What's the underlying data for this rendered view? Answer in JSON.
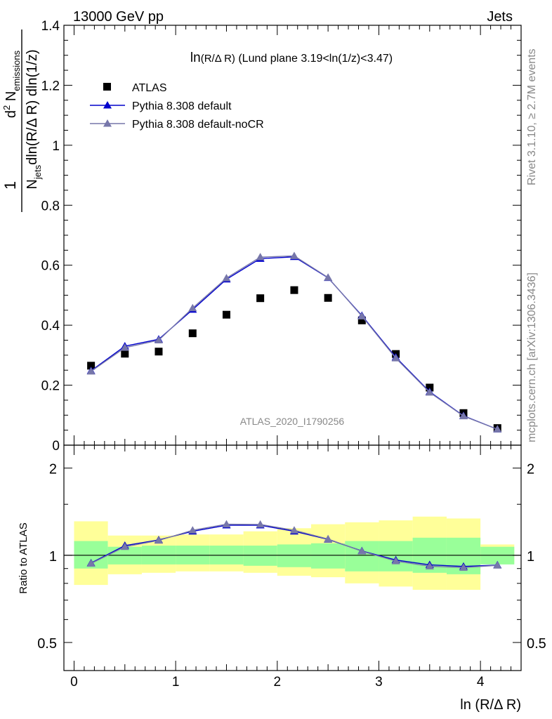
{
  "header": {
    "left": "13000 GeV pp",
    "right": "Jets"
  },
  "side": {
    "rivet": "Rivet 3.1.10, ≥ 2.7M events",
    "mcplots": "mcplots.cern.ch [arXiv:1306.3436]"
  },
  "colors": {
    "atlas": "#000000",
    "default": "#0000cc",
    "noCR": "#7777aa",
    "band_inner": "#99ff99",
    "band_outer": "#ffff99"
  },
  "chart_data": [
    {
      "type": "scatter",
      "title": "ln(R/Δ R) (Lund plane 3.19<ln(1/z)<3.47)",
      "ylabel": "1/N_jets d²N_emissions / dln(R/Δ R) dln(1/z)",
      "watermark": "ATLAS_2020_I1790256",
      "xlim": [
        -0.1,
        4.4
      ],
      "ylim": [
        0,
        1.4
      ],
      "yticks": [
        "0",
        "0.2",
        "0.4",
        "0.6",
        "0.8",
        "1",
        "1.2",
        "1.4"
      ],
      "legend_position": "top-left",
      "x": [
        0.167,
        0.5,
        0.833,
        1.167,
        1.5,
        1.833,
        2.167,
        2.5,
        2.833,
        3.167,
        3.5,
        3.833,
        4.167
      ],
      "series": [
        {
          "name": "ATLAS",
          "marker": "square",
          "values": [
            0.265,
            0.305,
            0.312,
            0.373,
            0.435,
            0.49,
            0.517,
            0.491,
            0.416,
            0.304,
            0.192,
            0.107,
            0.057
          ]
        },
        {
          "name": "Pythia 8.308 default",
          "marker": "triangle",
          "values": [
            0.248,
            0.33,
            0.353,
            0.452,
            0.553,
            0.622,
            0.628,
            0.558,
            0.432,
            0.293,
            0.178,
            0.098,
            0.053
          ]
        },
        {
          "name": "Pythia 8.308 default-noCR",
          "marker": "triangle",
          "values": [
            0.246,
            0.325,
            0.35,
            0.457,
            0.557,
            0.627,
            0.631,
            0.559,
            0.43,
            0.29,
            0.176,
            0.097,
            0.053
          ]
        }
      ]
    },
    {
      "type": "line",
      "ylabel": "Ratio to ATLAS",
      "xlabel": "ln (R/Δ R)",
      "xlim": [
        -0.1,
        4.4
      ],
      "ylim": [
        0.4,
        2.4
      ],
      "log_y": true,
      "xticks": [
        "0",
        "1",
        "2",
        "3",
        "4"
      ],
      "yticks": [
        "0.5",
        "1",
        "2"
      ],
      "x": [
        0.167,
        0.5,
        0.833,
        1.167,
        1.5,
        1.833,
        2.167,
        2.5,
        2.833,
        3.167,
        3.5,
        3.833,
        4.167
      ],
      "bins": [
        0,
        0.333,
        0.667,
        1.0,
        1.333,
        1.667,
        2.0,
        2.333,
        2.667,
        3.0,
        3.333,
        3.667,
        4.0,
        4.333
      ],
      "band_inner": [
        [
          0.9,
          1.12
        ],
        [
          0.93,
          1.07
        ],
        [
          0.93,
          1.08
        ],
        [
          0.93,
          1.08
        ],
        [
          0.93,
          1.08
        ],
        [
          0.92,
          1.08
        ],
        [
          0.91,
          1.09
        ],
        [
          0.9,
          1.1
        ],
        [
          0.88,
          1.12
        ],
        [
          0.88,
          1.12
        ],
        [
          0.87,
          1.15
        ],
        [
          0.86,
          1.15
        ],
        [
          0.93,
          1.07
        ]
      ],
      "band_outer": [
        [
          0.79,
          1.31
        ],
        [
          0.86,
          1.17
        ],
        [
          0.87,
          1.17
        ],
        [
          0.88,
          1.18
        ],
        [
          0.88,
          1.18
        ],
        [
          0.87,
          1.21
        ],
        [
          0.85,
          1.24
        ],
        [
          0.84,
          1.28
        ],
        [
          0.8,
          1.3
        ],
        [
          0.78,
          1.32
        ],
        [
          0.76,
          1.36
        ],
        [
          0.76,
          1.34
        ],
        [
          0.94,
          1.09
        ]
      ],
      "series": [
        {
          "name": "Pythia 8.308 default",
          "values": [
            0.94,
            1.08,
            1.13,
            1.21,
            1.27,
            1.27,
            1.21,
            1.135,
            1.035,
            0.963,
            0.927,
            0.915,
            0.925
          ]
        },
        {
          "name": "Pythia 8.308 default-noCR",
          "values": [
            0.937,
            1.07,
            1.125,
            1.22,
            1.28,
            1.278,
            1.22,
            1.138,
            1.033,
            0.955,
            0.917,
            0.907,
            0.923
          ]
        }
      ]
    }
  ]
}
